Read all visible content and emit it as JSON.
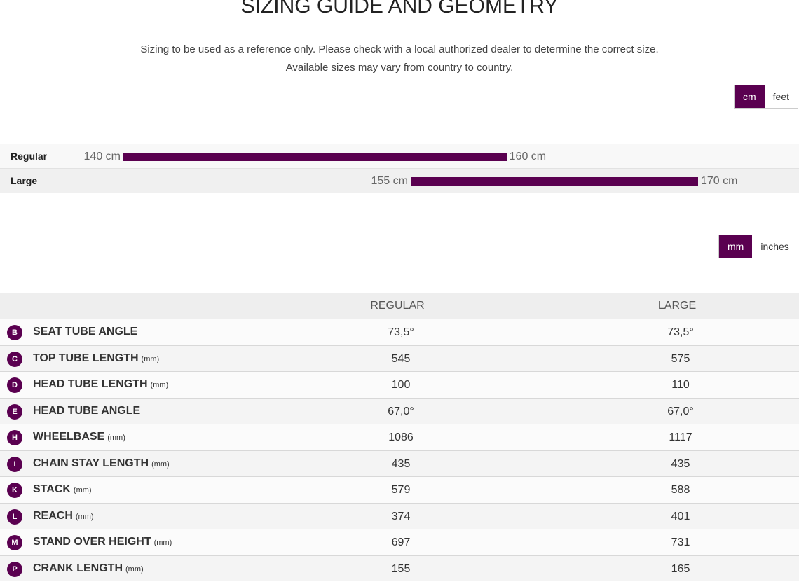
{
  "header": {
    "title": "SIZING GUIDE AND GEOMETRY",
    "notes": [
      "Sizing to be used as a reference only. Please check with a local authorized dealer to determine the correct size.",
      "Available sizes may vary from country to country."
    ]
  },
  "height_units": [
    "cm",
    "feet"
  ],
  "sizes": [
    {
      "label": "Regular",
      "values": [
        140,
        160
      ],
      "value_labels": [
        "140 cm",
        "160 cm"
      ]
    },
    {
      "label": "Large",
      "values": [
        155,
        170
      ],
      "value_labels": [
        "155 cm",
        "170 cm"
      ]
    }
  ],
  "geometry_units": [
    "mm",
    "inches"
  ],
  "table": {
    "columns": [
      "REGULAR",
      "LARGE"
    ],
    "rows": [
      {
        "letter": "B",
        "name": "SEAT TUBE ANGLE",
        "values": [
          "73,5°",
          "73,5°"
        ]
      },
      {
        "letter": "C",
        "name": "TOP TUBE LENGTH",
        "unit": "(mm)",
        "values": [
          "545",
          "575"
        ]
      },
      {
        "letter": "D",
        "name": "HEAD TUBE LENGTH",
        "unit": "(mm)",
        "values": [
          "100",
          "110"
        ]
      },
      {
        "letter": "E",
        "name": "HEAD TUBE ANGLE",
        "values": [
          "67,0°",
          "67,0°"
        ]
      },
      {
        "letter": "H",
        "name": "WHEELBASE",
        "unit": "(mm)",
        "values": [
          "1086",
          "1117"
        ]
      },
      {
        "letter": "I",
        "name": "CHAIN STAY LENGTH",
        "unit": "(mm)",
        "values": [
          "435",
          "435"
        ]
      },
      {
        "letter": "K",
        "name": "STACK",
        "unit": "(mm)",
        "values": [
          "579",
          "588"
        ]
      },
      {
        "letter": "L",
        "name": "REACH",
        "unit": "(mm)",
        "values": [
          "374",
          "401"
        ]
      },
      {
        "letter": "M",
        "name": "STAND OVER HEIGHT",
        "unit": "(mm)",
        "values": [
          "697",
          "731"
        ]
      },
      {
        "letter": "P",
        "name": "CRANK LENGTH",
        "unit": "(mm)",
        "values": [
          "155",
          "165"
        ]
      }
    ]
  }
}
